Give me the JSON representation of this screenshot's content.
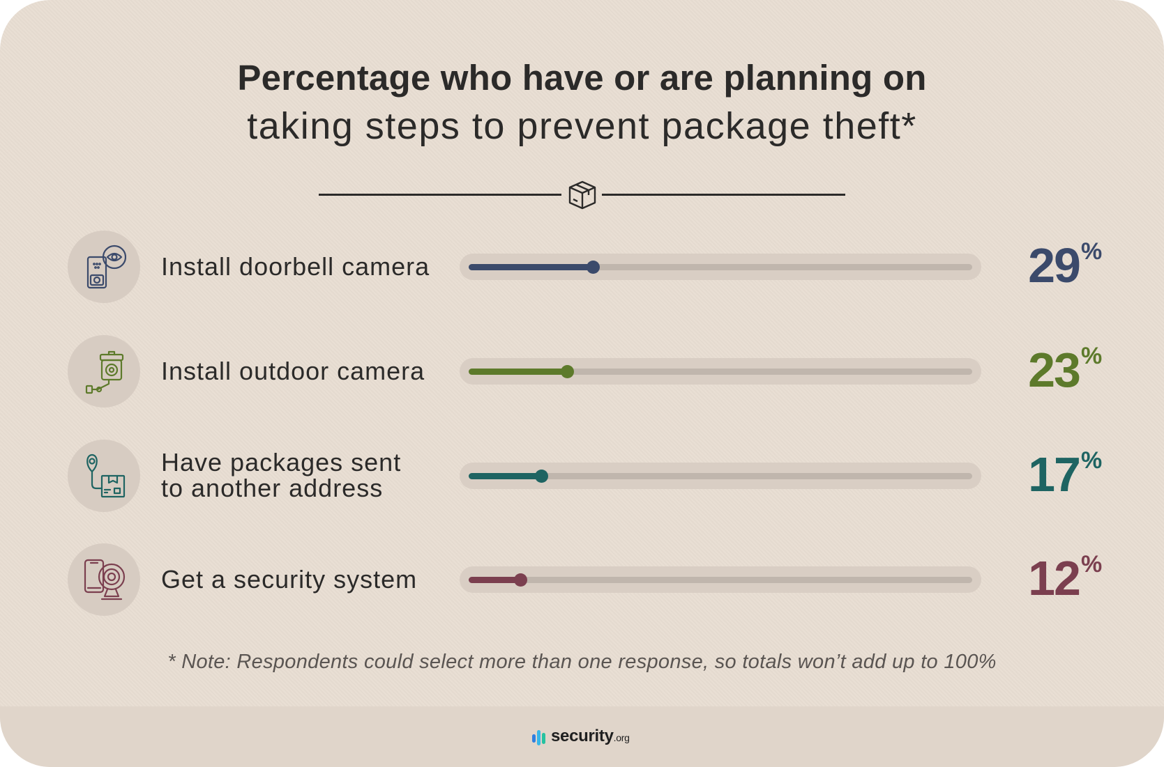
{
  "title": {
    "line1": "Percentage who have or are planning on",
    "line2": "taking steps to prevent package theft*"
  },
  "chart_data": {
    "type": "bar",
    "orientation": "horizontal",
    "categories": [
      "Install doorbell camera",
      "Install outdoor camera",
      "Have packages sent to another address",
      "Get a security system"
    ],
    "values": [
      29,
      23,
      17,
      12
    ],
    "value_labels": [
      "29",
      "23",
      "17",
      "12"
    ],
    "unit": "%",
    "xlim": [
      0,
      100
    ],
    "colors": [
      "#3b4a6b",
      "#5d7a2b",
      "#1e6462",
      "#7b3f4f"
    ],
    "icons": [
      "doorbell-camera-icon",
      "outdoor-camera-icon",
      "location-package-icon",
      "security-system-icon"
    ]
  },
  "rows": [
    {
      "label_lines": [
        "Install doorbell camera"
      ]
    },
    {
      "label_lines": [
        "Install outdoor camera"
      ]
    },
    {
      "label_lines": [
        "Have packages sent",
        "to another address"
      ]
    },
    {
      "label_lines": [
        "Get a security system"
      ]
    }
  ],
  "note": "* Note: Respondents could select more than one response, so totals won’t add up to 100%",
  "logo": {
    "name": "security",
    "suffix": ".org"
  }
}
